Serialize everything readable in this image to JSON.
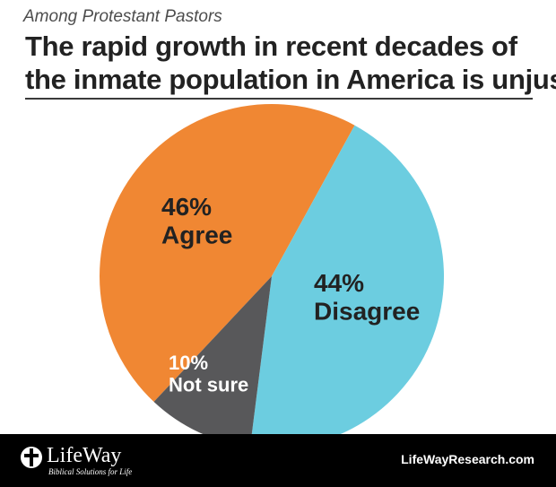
{
  "header": {
    "subtitle": "Among Protestant Pastors",
    "title_line1": "The rapid growth in recent decades of",
    "title_line2": "the inmate population in America is unjust."
  },
  "chart_data": {
    "type": "pie",
    "title": "The rapid growth in recent decades of the inmate population in America is unjust.",
    "subtitle": "Among Protestant Pastors",
    "slices": [
      {
        "label": "Agree",
        "value": 46,
        "display": "46%",
        "color": "#f08733"
      },
      {
        "label": "Disagree",
        "value": 44,
        "display": "44%",
        "color": "#6ccde0"
      },
      {
        "label": "Not sure",
        "value": 10,
        "display": "10%",
        "color": "#58585a"
      }
    ]
  },
  "footer": {
    "brand": "LifeWay",
    "tagline": "Biblical Solutions for Life",
    "site": "LifeWayResearch.com"
  },
  "colors": {
    "footer_bg": "#000000",
    "label_dark": "#222222",
    "label_light": "#ffffff"
  }
}
